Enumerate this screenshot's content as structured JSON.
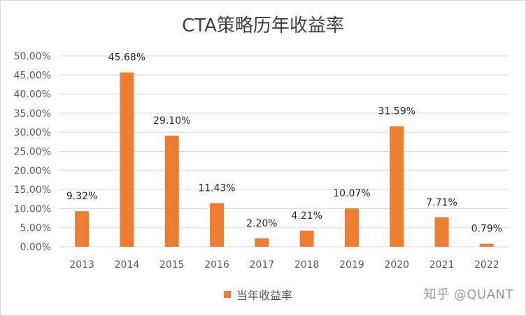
{
  "chart_data": {
    "type": "bar",
    "title": "CTA策略历年收益率",
    "categories": [
      "2013",
      "2014",
      "2015",
      "2016",
      "2017",
      "2018",
      "2019",
      "2020",
      "2021",
      "2022"
    ],
    "series": [
      {
        "name": "当年收益率",
        "values": [
          9.32,
          45.68,
          29.1,
          11.43,
          2.2,
          4.21,
          10.07,
          31.59,
          7.71,
          0.79
        ],
        "labels": [
          "9.32%",
          "45.68%",
          "29.10%",
          "11.43%",
          "2.20%",
          "4.21%",
          "10.07%",
          "31.59%",
          "7.71%",
          "0.79%"
        ]
      }
    ],
    "ylim": [
      0,
      50
    ],
    "yticks": [
      0,
      5,
      10,
      15,
      20,
      25,
      30,
      35,
      40,
      45,
      50
    ],
    "ytick_labels": [
      "0.00%",
      "5.00%",
      "10.00%",
      "15.00%",
      "20.00%",
      "25.00%",
      "30.00%",
      "35.00%",
      "40.00%",
      "45.00%",
      "50.00%"
    ],
    "grid": true,
    "legend_position": "bottom",
    "colors": {
      "bar": "#ed7d31",
      "grid": "#d9d9d9"
    }
  },
  "watermark": "知乎 @QUANT"
}
